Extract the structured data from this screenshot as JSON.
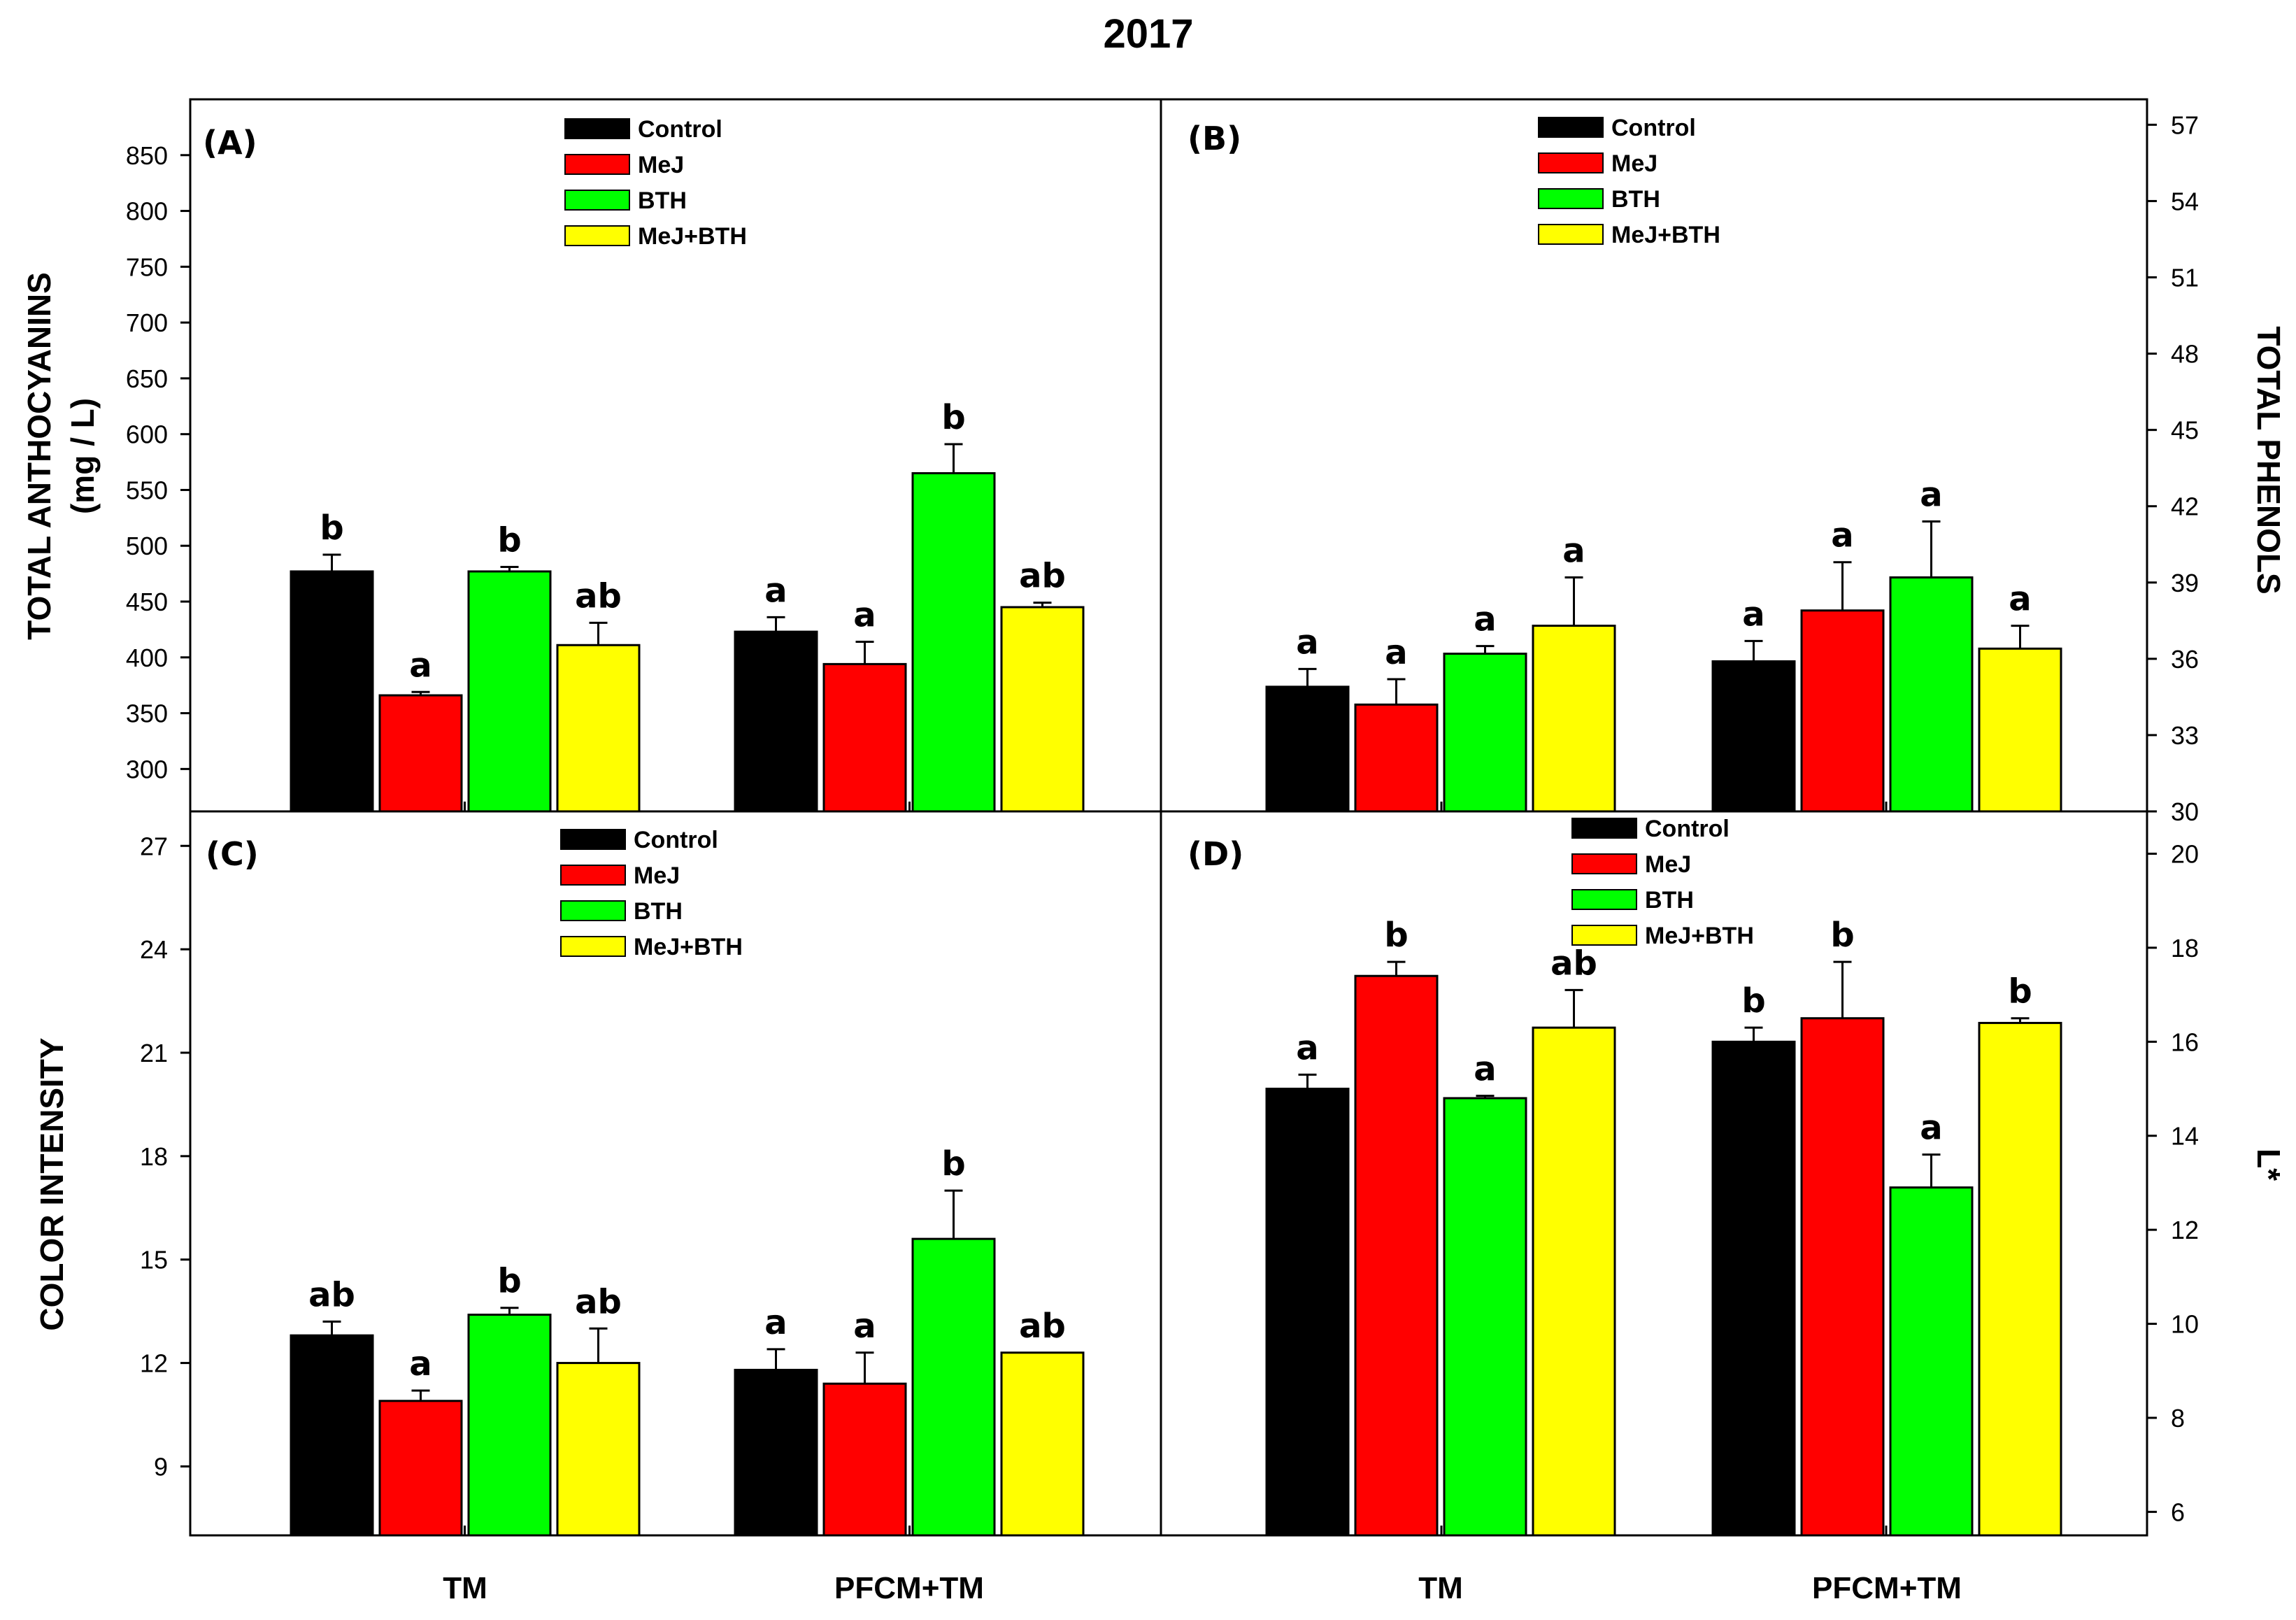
{
  "title": "2017",
  "legend": {
    "entries": [
      "Control",
      "MeJ",
      "BTH",
      "MeJ+BTH"
    ],
    "colors": [
      "#000000",
      "#ff0000",
      "#00ff00",
      "#ffff00"
    ]
  },
  "chart_data": [
    {
      "type": "bar",
      "panel": "(A)",
      "ylabel": "TOTAL ANTHOCYANINS",
      "ylabel_units": "(mg / L)",
      "yaxis_side": "left",
      "ylim": [
        262,
        900
      ],
      "yticks": [
        300,
        350,
        400,
        450,
        500,
        550,
        600,
        650,
        700,
        750,
        800,
        850
      ],
      "categories": [
        "TM",
        "PFCM+TM"
      ],
      "series": [
        {
          "name": "Control",
          "values": [
            477,
            423
          ],
          "errors": [
            15,
            13
          ],
          "labels": [
            "b",
            "a"
          ]
        },
        {
          "name": "MeJ",
          "values": [
            366,
            394
          ],
          "errors": [
            3,
            20
          ],
          "labels": [
            "a",
            "a"
          ]
        },
        {
          "name": "BTH",
          "values": [
            477,
            565
          ],
          "errors": [
            4,
            26
          ],
          "labels": [
            "b",
            "b"
          ]
        },
        {
          "name": "MeJ+BTH",
          "values": [
            411,
            445
          ],
          "errors": [
            20,
            4
          ],
          "labels": [
            "ab",
            "ab"
          ]
        }
      ]
    },
    {
      "type": "bar",
      "panel": "(B)",
      "ylabel": "TOTAL PHENOLS",
      "yaxis_side": "right",
      "ylim": [
        30,
        58
      ],
      "yticks": [
        30,
        33,
        36,
        39,
        42,
        45,
        48,
        51,
        54,
        57
      ],
      "categories": [
        "TM",
        "PFCM+TM"
      ],
      "series": [
        {
          "name": "Control",
          "values": [
            34.9,
            35.9
          ],
          "errors": [
            0.7,
            0.8
          ],
          "labels": [
            "a",
            "a"
          ]
        },
        {
          "name": "MeJ",
          "values": [
            34.2,
            37.9
          ],
          "errors": [
            1.0,
            1.9
          ],
          "labels": [
            "a",
            "a"
          ]
        },
        {
          "name": "BTH",
          "values": [
            36.2,
            39.2
          ],
          "errors": [
            0.3,
            2.2
          ],
          "labels": [
            "a",
            "a"
          ]
        },
        {
          "name": "MeJ+BTH",
          "values": [
            37.3,
            36.4
          ],
          "errors": [
            1.9,
            0.9
          ],
          "labels": [
            "a",
            "a"
          ]
        }
      ]
    },
    {
      "type": "bar",
      "panel": "(C)",
      "ylabel": "COLOR INTENSITY",
      "yaxis_side": "left",
      "ylim": [
        7,
        28
      ],
      "yticks": [
        9,
        12,
        15,
        18,
        21,
        24,
        27
      ],
      "categories": [
        "TM",
        "PFCM+TM"
      ],
      "series": [
        {
          "name": "Control",
          "values": [
            12.8,
            11.8
          ],
          "errors": [
            0.4,
            0.6
          ],
          "labels": [
            "ab",
            "a"
          ]
        },
        {
          "name": "MeJ",
          "values": [
            10.9,
            11.4
          ],
          "errors": [
            0.3,
            0.9
          ],
          "labels": [
            "a",
            "a"
          ]
        },
        {
          "name": "BTH",
          "values": [
            13.4,
            15.6
          ],
          "errors": [
            0.2,
            1.4
          ],
          "labels": [
            "b",
            "b"
          ]
        },
        {
          "name": "MeJ+BTH",
          "values": [
            12.0,
            12.3
          ],
          "errors": [
            1.0,
            0.0
          ],
          "labels": [
            "ab",
            "ab"
          ]
        }
      ]
    },
    {
      "type": "bar",
      "panel": "(D)",
      "ylabel": "L*",
      "yaxis_side": "right",
      "ylim": [
        5.5,
        20.9
      ],
      "yticks": [
        6,
        8,
        10,
        12,
        14,
        16,
        18,
        20
      ],
      "categories": [
        "TM",
        "PFCM+TM"
      ],
      "series": [
        {
          "name": "Control",
          "values": [
            15.0,
            16.0
          ],
          "errors": [
            0.3,
            0.3
          ],
          "labels": [
            "a",
            "b"
          ]
        },
        {
          "name": "MeJ",
          "values": [
            17.4,
            16.5
          ],
          "errors": [
            0.3,
            1.2
          ],
          "labels": [
            "b",
            "b"
          ]
        },
        {
          "name": "BTH",
          "values": [
            14.8,
            12.9
          ],
          "errors": [
            0.05,
            0.7
          ],
          "labels": [
            "a",
            "a"
          ]
        },
        {
          "name": "MeJ+BTH",
          "values": [
            16.3,
            16.4
          ],
          "errors": [
            0.8,
            0.1
          ],
          "labels": [
            "ab",
            "b"
          ]
        }
      ]
    }
  ]
}
